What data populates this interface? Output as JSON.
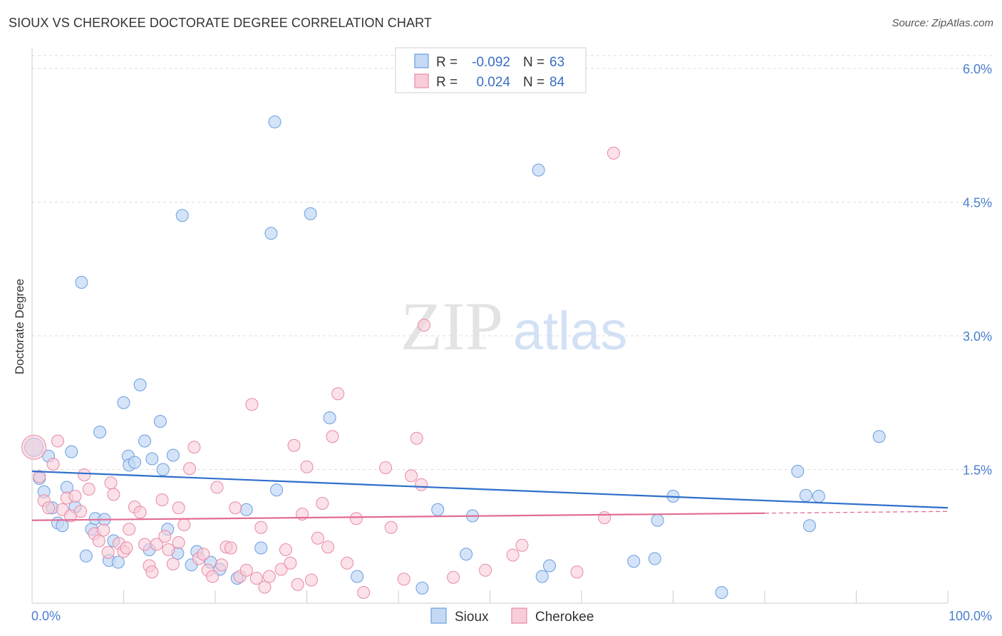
{
  "title": "SIOUX VS CHEROKEE DOCTORATE DEGREE CORRELATION CHART",
  "source": "Source: ZipAtlas.com",
  "colors": {
    "sioux": "#6b9ee0",
    "sioux_fill": "#c5d9f5",
    "sioux_line": "#2e6fcc",
    "cherokee": "#e88aa6",
    "cherokee_fill": "#f8cdd9",
    "cherokee_line": "#e26d93",
    "tick": "#4a7fd0",
    "grid": "#dddddd"
  },
  "chart_data": {
    "type": "scatter",
    "title": "SIOUX VS CHEROKEE DOCTORATE DEGREE CORRELATION CHART",
    "xlabel": "",
    "ylabel": "Doctorate Degree",
    "xlim": [
      0,
      100
    ],
    "ylim": [
      0,
      6.0
    ],
    "x_tick_labels": [
      "0.0%",
      "100.0%"
    ],
    "y_ticks": [
      1.5,
      3.0,
      4.5,
      6.0
    ],
    "y_tick_labels": [
      "1.5%",
      "3.0%",
      "4.5%",
      "6.0%"
    ],
    "watermark": {
      "part1": "ZIP",
      "part2": "atlas"
    },
    "legend": [
      {
        "series": "Sioux",
        "r_label": "R =",
        "r_value": "-0.092",
        "n_label": "N =",
        "n_value": "63"
      },
      {
        "series": "Cherokee",
        "r_label": "R =",
        "r_value": "0.024",
        "n_label": "N =",
        "n_value": "84"
      }
    ],
    "series": [
      {
        "name": "Sioux",
        "trend": {
          "x0": 0,
          "y0": 1.48,
          "x1": 100,
          "y1": 1.07
        },
        "points": [
          [
            0.2,
            1.75
          ],
          [
            0.8,
            1.4
          ],
          [
            1.3,
            1.25
          ],
          [
            1.8,
            1.65
          ],
          [
            2.2,
            1.07
          ],
          [
            2.8,
            0.9
          ],
          [
            3.3,
            0.87
          ],
          [
            3.8,
            1.3
          ],
          [
            4.3,
            1.7
          ],
          [
            4.7,
            1.08
          ],
          [
            5.4,
            3.6
          ],
          [
            5.9,
            0.53
          ],
          [
            6.5,
            0.83
          ],
          [
            6.9,
            0.95
          ],
          [
            7.4,
            1.92
          ],
          [
            7.9,
            0.94
          ],
          [
            8.4,
            0.48
          ],
          [
            8.9,
            0.7
          ],
          [
            9.4,
            0.46
          ],
          [
            10.0,
            2.25
          ],
          [
            10.5,
            1.65
          ],
          [
            10.6,
            1.55
          ],
          [
            11.2,
            1.58
          ],
          [
            11.8,
            2.45
          ],
          [
            12.3,
            1.82
          ],
          [
            12.8,
            0.6
          ],
          [
            13.1,
            1.62
          ],
          [
            14.0,
            2.04
          ],
          [
            14.3,
            1.5
          ],
          [
            14.8,
            0.83
          ],
          [
            15.4,
            1.66
          ],
          [
            15.9,
            0.56
          ],
          [
            16.4,
            4.35
          ],
          [
            17.4,
            0.43
          ],
          [
            18.0,
            0.58
          ],
          [
            19.5,
            0.46
          ],
          [
            20.5,
            0.38
          ],
          [
            22.4,
            0.28
          ],
          [
            23.4,
            1.05
          ],
          [
            25.0,
            0.62
          ],
          [
            26.1,
            4.15
          ],
          [
            26.5,
            5.4
          ],
          [
            26.7,
            1.27
          ],
          [
            30.4,
            4.37
          ],
          [
            32.5,
            2.08
          ],
          [
            35.5,
            0.3
          ],
          [
            42.6,
            0.17
          ],
          [
            44.3,
            1.05
          ],
          [
            47.4,
            0.55
          ],
          [
            48.1,
            0.98
          ],
          [
            55.3,
            4.86
          ],
          [
            55.7,
            0.3
          ],
          [
            56.5,
            0.42
          ],
          [
            65.7,
            0.47
          ],
          [
            68.0,
            0.5
          ],
          [
            68.3,
            0.93
          ],
          [
            70.0,
            1.2
          ],
          [
            75.3,
            0.12
          ],
          [
            83.6,
            1.48
          ],
          [
            84.5,
            1.21
          ],
          [
            84.9,
            0.87
          ],
          [
            85.9,
            1.2
          ],
          [
            92.5,
            1.87
          ]
        ]
      },
      {
        "name": "Cherokee",
        "trend": {
          "x0": 0,
          "y0": 0.93,
          "x1": 80,
          "y1": 1.01,
          "dash_to": 100,
          "dash_y": 1.03
        },
        "points": [
          [
            0.2,
            1.75
          ],
          [
            0.8,
            1.42
          ],
          [
            1.3,
            1.15
          ],
          [
            1.8,
            1.07
          ],
          [
            2.3,
            1.56
          ],
          [
            2.8,
            1.82
          ],
          [
            3.3,
            1.05
          ],
          [
            3.8,
            1.18
          ],
          [
            4.2,
            0.98
          ],
          [
            4.7,
            1.2
          ],
          [
            5.3,
            1.03
          ],
          [
            5.7,
            1.44
          ],
          [
            6.2,
            1.28
          ],
          [
            6.8,
            0.78
          ],
          [
            7.3,
            0.7
          ],
          [
            7.8,
            0.82
          ],
          [
            8.3,
            0.57
          ],
          [
            8.6,
            1.35
          ],
          [
            8.9,
            1.22
          ],
          [
            9.5,
            0.67
          ],
          [
            10.0,
            0.58
          ],
          [
            10.3,
            0.62
          ],
          [
            10.6,
            0.83
          ],
          [
            11.2,
            1.08
          ],
          [
            11.8,
            1.02
          ],
          [
            12.3,
            0.66
          ],
          [
            12.8,
            0.42
          ],
          [
            13.1,
            0.35
          ],
          [
            13.6,
            0.66
          ],
          [
            14.2,
            1.16
          ],
          [
            14.5,
            0.75
          ],
          [
            14.9,
            0.6
          ],
          [
            15.4,
            0.44
          ],
          [
            16.0,
            0.68
          ],
          [
            16.0,
            1.07
          ],
          [
            16.6,
            0.88
          ],
          [
            17.2,
            1.51
          ],
          [
            17.7,
            1.75
          ],
          [
            18.2,
            0.5
          ],
          [
            18.7,
            0.55
          ],
          [
            19.2,
            0.37
          ],
          [
            19.7,
            0.3
          ],
          [
            20.2,
            1.3
          ],
          [
            20.7,
            0.43
          ],
          [
            21.2,
            0.63
          ],
          [
            21.7,
            0.62
          ],
          [
            22.2,
            1.07
          ],
          [
            22.7,
            0.3
          ],
          [
            23.4,
            0.37
          ],
          [
            24.0,
            2.23
          ],
          [
            24.5,
            0.28
          ],
          [
            25.0,
            0.85
          ],
          [
            25.4,
            0.18
          ],
          [
            25.9,
            0.3
          ],
          [
            27.2,
            0.38
          ],
          [
            27.7,
            0.6
          ],
          [
            28.2,
            0.45
          ],
          [
            28.6,
            1.77
          ],
          [
            29.0,
            0.21
          ],
          [
            29.5,
            1.0
          ],
          [
            30.0,
            1.53
          ],
          [
            30.5,
            0.26
          ],
          [
            31.2,
            0.73
          ],
          [
            31.7,
            1.12
          ],
          [
            32.3,
            0.63
          ],
          [
            32.8,
            1.87
          ],
          [
            33.4,
            2.35
          ],
          [
            34.4,
            0.45
          ],
          [
            35.4,
            0.95
          ],
          [
            36.2,
            0.12
          ],
          [
            38.6,
            1.52
          ],
          [
            39.2,
            0.85
          ],
          [
            40.6,
            0.27
          ],
          [
            41.4,
            1.43
          ],
          [
            42.0,
            1.85
          ],
          [
            42.5,
            1.33
          ],
          [
            42.8,
            3.12
          ],
          [
            46.0,
            0.29
          ],
          [
            49.5,
            0.37
          ],
          [
            52.5,
            0.54
          ],
          [
            53.5,
            0.65
          ],
          [
            59.5,
            0.35
          ],
          [
            62.5,
            0.96
          ],
          [
            63.5,
            5.05
          ]
        ]
      }
    ]
  },
  "bottom_legend": [
    {
      "label": "Sioux"
    },
    {
      "label": "Cherokee"
    }
  ]
}
